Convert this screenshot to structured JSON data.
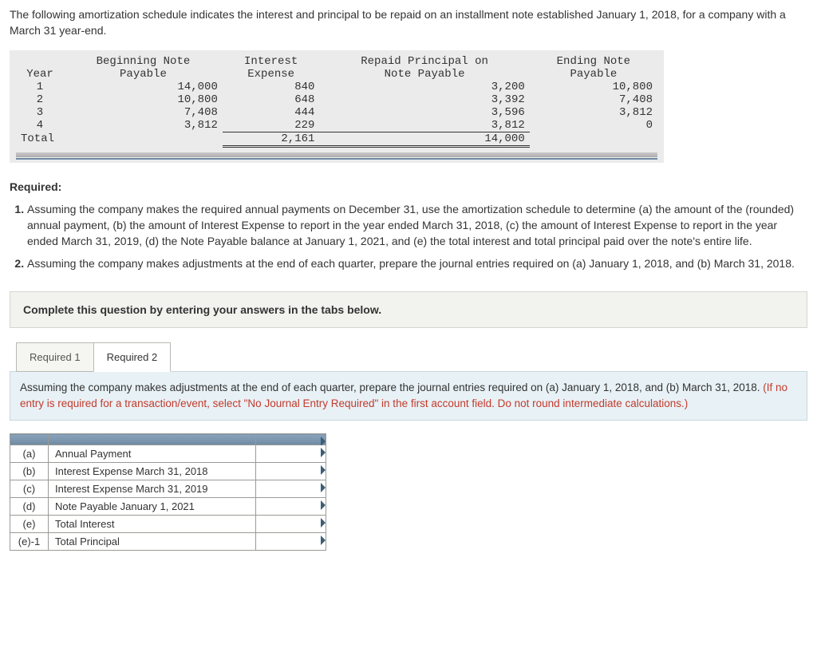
{
  "intro": "The following amortization schedule indicates the interest and principal to be repaid on an installment note established January 1, 2018, for a company with a March 31 year-end.",
  "amort": {
    "headers": {
      "year": "Year",
      "beg": "Beginning Note\nPayable",
      "int": "Interest\nExpense",
      "rep": "Repaid Principal on\nNote Payable",
      "end": "Ending Note\nPayable"
    },
    "rows": [
      {
        "year": "1",
        "beg": "14,000",
        "int": "840",
        "rep": "3,200",
        "end": "10,800"
      },
      {
        "year": "2",
        "beg": "10,800",
        "int": "648",
        "rep": "3,392",
        "end": "7,408"
      },
      {
        "year": "3",
        "beg": "7,408",
        "int": "444",
        "rep": "3,596",
        "end": "3,812"
      },
      {
        "year": "4",
        "beg": "3,812",
        "int": "229",
        "rep": "3,812",
        "end": "0"
      }
    ],
    "total_label": "Total",
    "total_int": "2,161",
    "total_rep": "14,000"
  },
  "required_label": "Required:",
  "questions": {
    "q1": "Assuming the company makes the required annual payments on December 31, use the amortization schedule to determine (a) the amount of the (rounded) annual payment, (b) the amount of Interest Expense to report in the year ended March 31, 2018, (c) the amount of Interest Expense to report in the year ended March 31, 2019, (d) the Note Payable balance at January 1, 2021, and (e) the total interest and total principal paid over the note's entire life.",
    "q2": "Assuming the company makes adjustments at the end of each quarter, prepare the journal entries required on (a) January 1, 2018, and (b) March 31, 2018."
  },
  "answer_prompt": "Complete this question by entering your answers in the tabs below.",
  "tabs": {
    "t1": "Required 1",
    "t2": "Required 2"
  },
  "panel": {
    "main": "Assuming the company makes adjustments at the end of each quarter, prepare the journal entries required on (a) January 1, 2018, and (b) March 31, 2018. ",
    "red": "(If no entry is required for a transaction/event, select \"No Journal Entry Required\" in the first account field. Do not round intermediate calculations.)"
  },
  "answers": [
    {
      "lbl": "(a)",
      "desc": "Annual Payment"
    },
    {
      "lbl": "(b)",
      "desc": "Interest Expense March 31, 2018"
    },
    {
      "lbl": "(c)",
      "desc": "Interest Expense March 31, 2019"
    },
    {
      "lbl": "(d)",
      "desc": "Note Payable January 1, 2021"
    },
    {
      "lbl": "(e)",
      "desc": "Total Interest"
    },
    {
      "lbl": "(e)-1",
      "desc": "Total Principal"
    }
  ]
}
